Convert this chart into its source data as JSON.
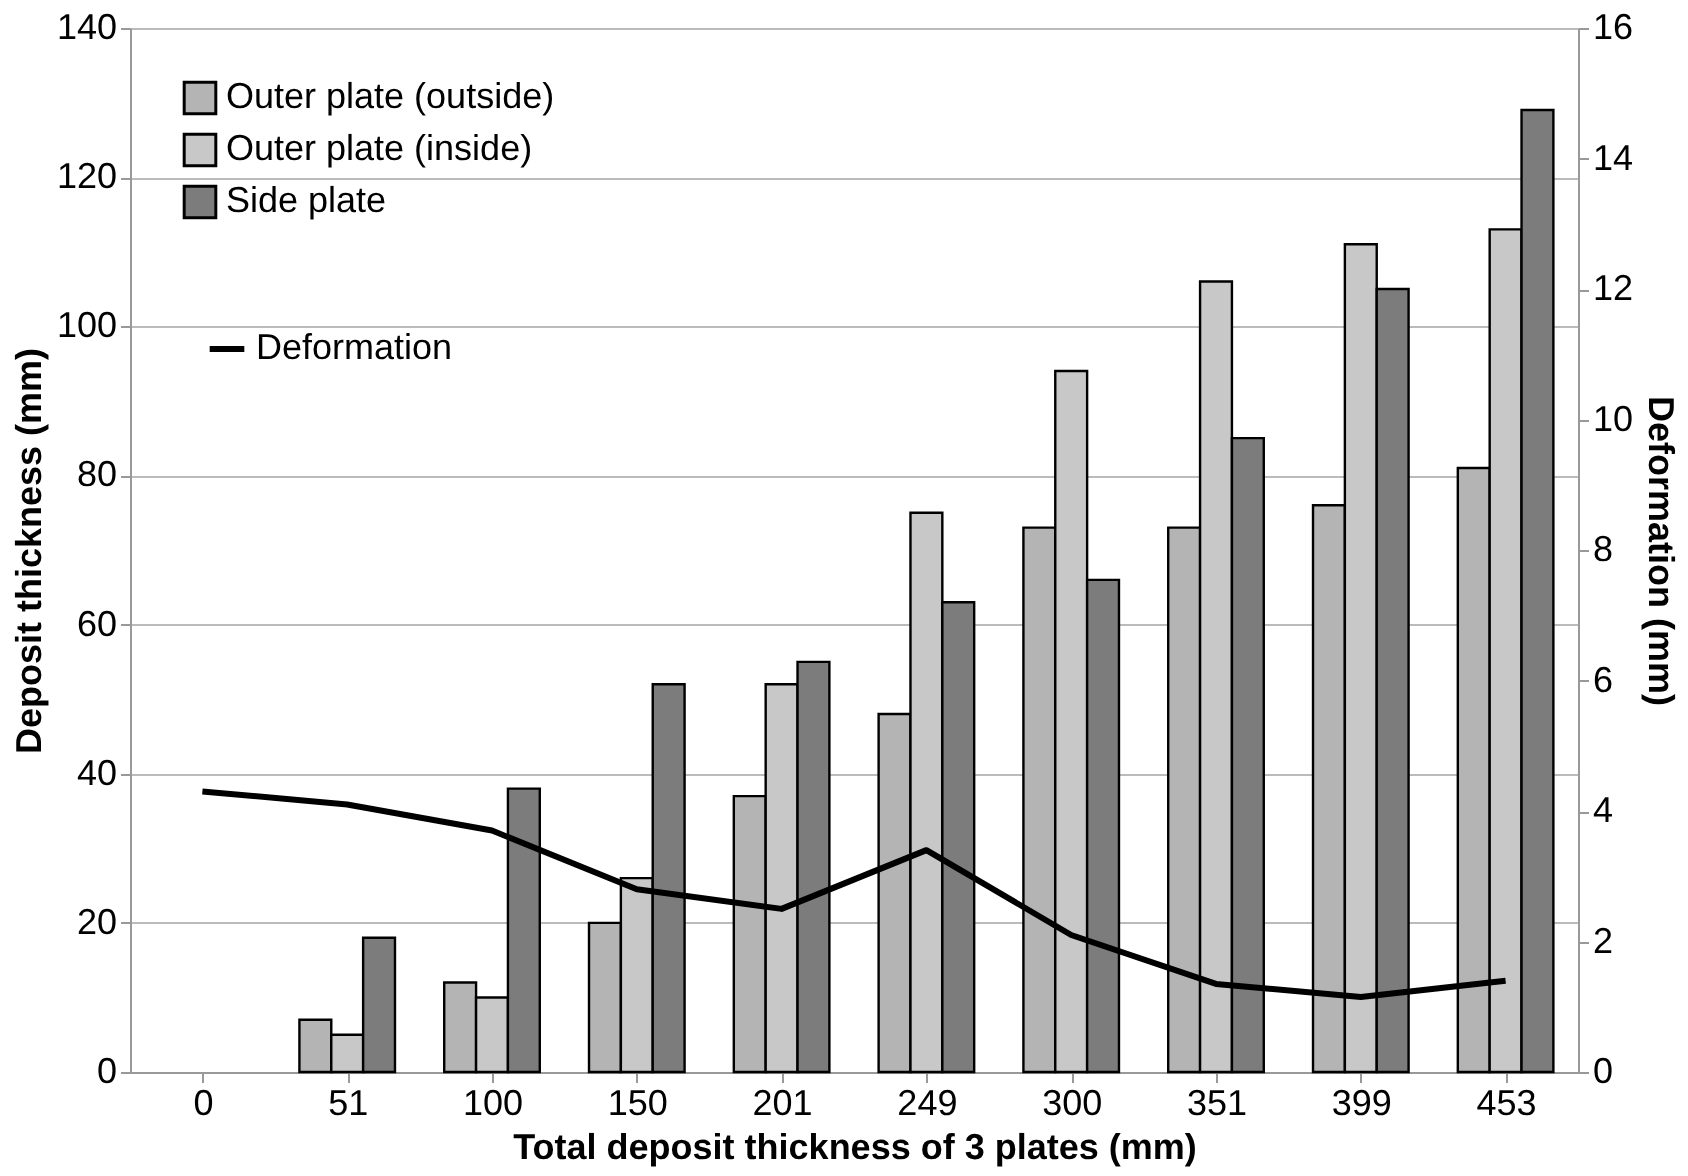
{
  "chart_data": {
    "type": "bar",
    "xlabel": "Total deposit thickness of 3 plates (mm)",
    "ylabel": "Deposit thickness (mm)",
    "y2label": "Deformation (mm)",
    "categories": [
      "0",
      "51",
      "100",
      "150",
      "201",
      "249",
      "300",
      "351",
      "399",
      "453"
    ],
    "series": [
      {
        "name": "Outer plate (outside)",
        "color": "#b4b4b4",
        "values": [
          null,
          7,
          12,
          20,
          37,
          48,
          73,
          73,
          76,
          81
        ]
      },
      {
        "name": "Outer plate (inside)",
        "color": "#c8c8c8",
        "values": [
          null,
          5,
          10,
          26,
          52,
          75,
          94,
          106,
          111,
          113
        ]
      },
      {
        "name": "Side plate",
        "color": "#7c7c7c",
        "values": [
          null,
          18,
          38,
          52,
          55,
          63,
          66,
          85,
          105,
          129
        ]
      },
      {
        "name": "Deformation",
        "type": "line",
        "axis": "y2",
        "color": "#000000",
        "values": [
          4.3,
          4.1,
          3.7,
          2.8,
          2.5,
          3.4,
          2.1,
          1.35,
          1.15,
          1.4
        ]
      }
    ],
    "ylim": [
      0,
      140
    ],
    "yticks": [
      0,
      20,
      40,
      60,
      80,
      100,
      120,
      140
    ],
    "y2lim": [
      0,
      16
    ],
    "y2ticks": [
      0,
      2,
      4,
      6,
      8,
      10,
      12,
      14,
      16
    ],
    "grid": "y",
    "legend": "top left",
    "marker": "none",
    "line_style": "solid"
  }
}
